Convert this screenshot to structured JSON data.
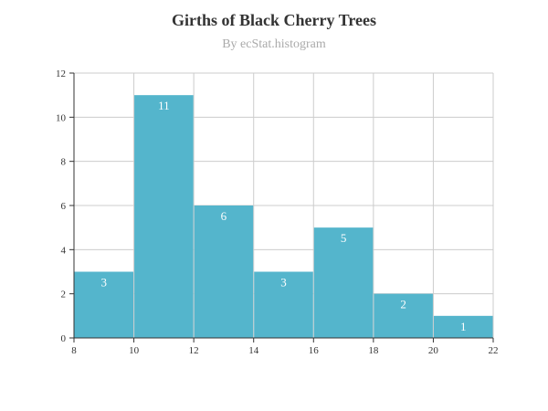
{
  "chart_data": {
    "type": "bar",
    "title": "Girths of Black Cherry Trees",
    "subtitle": "By ecStat.histogram",
    "xlabel": "",
    "ylabel": "",
    "bins": [
      {
        "x0": 8,
        "x1": 10,
        "value": 3
      },
      {
        "x0": 10,
        "x1": 12,
        "value": 11
      },
      {
        "x0": 12,
        "x1": 14,
        "value": 6
      },
      {
        "x0": 14,
        "x1": 16,
        "value": 3
      },
      {
        "x0": 16,
        "x1": 18,
        "value": 5
      },
      {
        "x0": 18,
        "x1": 20,
        "value": 2
      },
      {
        "x0": 20,
        "x1": 22,
        "value": 1
      }
    ],
    "xlim": [
      8,
      22
    ],
    "ylim": [
      0,
      12
    ],
    "xticks": [
      8,
      10,
      12,
      14,
      16,
      18,
      20,
      22
    ],
    "yticks": [
      0,
      2,
      4,
      6,
      8,
      10,
      12
    ],
    "grid": true,
    "bar_color": "#54b5cc",
    "grid_color": "#cccccc",
    "axis_color": "#333333"
  }
}
